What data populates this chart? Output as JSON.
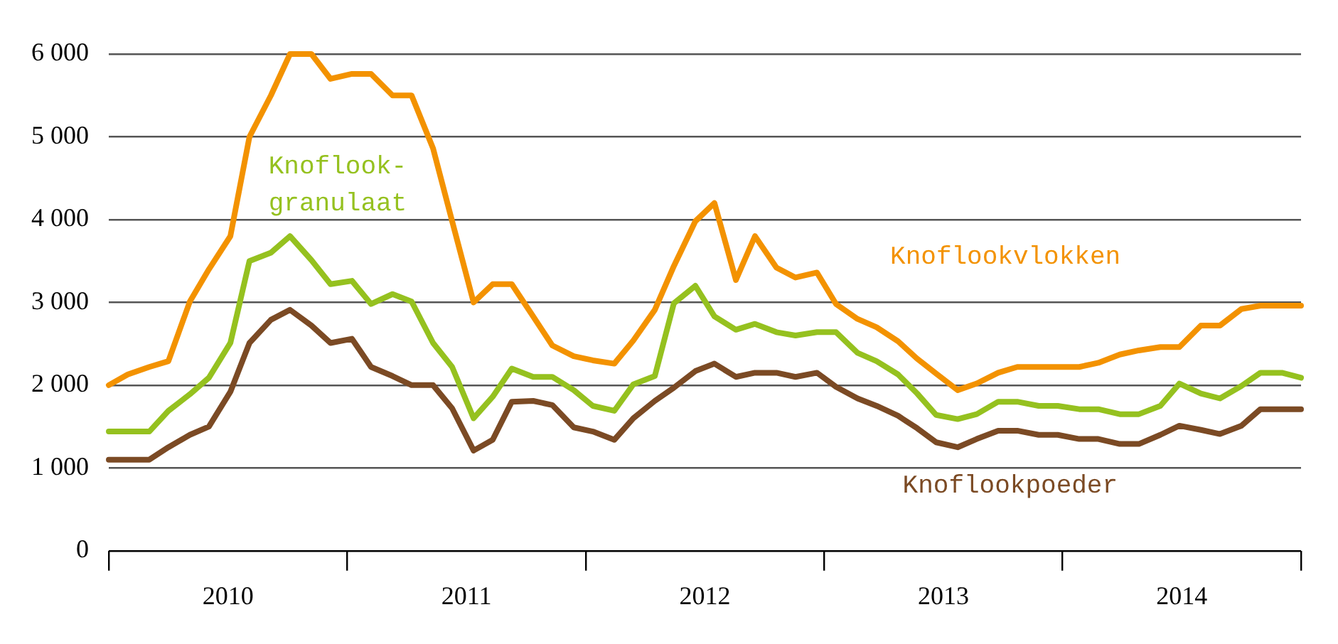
{
  "chart_data": {
    "type": "line",
    "x": [
      2010,
      2010.08,
      2010.17,
      2010.25,
      2010.34,
      2010.42,
      2010.51,
      2010.59,
      2010.68,
      2010.76,
      2010.85,
      2010.93,
      2011.02,
      2011.1,
      2011.19,
      2011.27,
      2011.36,
      2011.44,
      2011.53,
      2011.61,
      2011.69,
      2011.78,
      2011.86,
      2011.95,
      2012.03,
      2012.12,
      2012.2,
      2012.29,
      2012.37,
      2012.46,
      2012.54,
      2012.63,
      2012.71,
      2012.8,
      2012.88,
      2012.97,
      2013.05,
      2013.14,
      2013.22,
      2013.31,
      2013.39,
      2013.47,
      2013.56,
      2013.64,
      2013.73,
      2013.81,
      2013.9,
      2013.98,
      2014.07,
      2014.15,
      2014.24,
      2014.32,
      2014.41,
      2014.49,
      2014.58,
      2014.66,
      2014.75,
      2014.83,
      2014.92,
      2015
    ],
    "series": [
      {
        "name": "Knoflookvlokken",
        "color": "#f39200",
        "values": [
          2000,
          2130,
          2220,
          2290,
          3010,
          3400,
          3800,
          5000,
          5500,
          6000,
          6000,
          5700,
          5760,
          5760,
          5500,
          5500,
          4860,
          3980,
          3000,
          3220,
          3220,
          2830,
          2480,
          2350,
          2300,
          2260,
          2540,
          2910,
          3440,
          3980,
          4200,
          3270,
          3800,
          3420,
          3300,
          3360,
          2980,
          2800,
          2700,
          2530,
          2320,
          2140,
          1940,
          2020,
          2150,
          2220,
          2220,
          2220,
          2220,
          2270,
          2370,
          2420,
          2460,
          2460,
          2720,
          2720,
          2920,
          2960,
          2960,
          2960
        ]
      },
      {
        "name": "Knoflook-granulaat",
        "color": "#95c11f",
        "values": [
          1440,
          1440,
          1440,
          1690,
          1890,
          2090,
          2510,
          3500,
          3600,
          3800,
          3510,
          3220,
          3260,
          2980,
          3100,
          3010,
          2510,
          2220,
          1600,
          1860,
          2200,
          2100,
          2100,
          1940,
          1750,
          1690,
          2010,
          2110,
          2990,
          3200,
          2830,
          2670,
          2740,
          2640,
          2600,
          2640,
          2640,
          2390,
          2290,
          2130,
          1900,
          1640,
          1590,
          1650,
          1800,
          1800,
          1750,
          1750,
          1710,
          1710,
          1650,
          1650,
          1750,
          2020,
          1900,
          1840,
          1990,
          2150,
          2150,
          2090
        ]
      },
      {
        "name": "Knoflookpoeder",
        "color": "#7b4a24",
        "values": [
          1100,
          1100,
          1100,
          1250,
          1400,
          1500,
          1920,
          2510,
          2790,
          2910,
          2720,
          2510,
          2560,
          2220,
          2110,
          2000,
          2000,
          1720,
          1210,
          1340,
          1800,
          1810,
          1760,
          1490,
          1440,
          1340,
          1600,
          1810,
          1970,
          2170,
          2260,
          2100,
          2150,
          2150,
          2100,
          2150,
          1980,
          1840,
          1750,
          1630,
          1480,
          1310,
          1250,
          1350,
          1450,
          1450,
          1400,
          1400,
          1350,
          1350,
          1290,
          1290,
          1400,
          1510,
          1460,
          1410,
          1510,
          1710,
          1710,
          1710
        ]
      }
    ],
    "xlim": [
      2010,
      2015
    ],
    "xticks": [
      {
        "value": 2010,
        "label": null
      },
      {
        "value": 2010.5,
        "label": "2010"
      },
      {
        "value": 2011,
        "label": null
      },
      {
        "value": 2011.5,
        "label": "2011"
      },
      {
        "value": 2012,
        "label": null
      },
      {
        "value": 2012.5,
        "label": "2012"
      },
      {
        "value": 2013,
        "label": null
      },
      {
        "value": 2013.5,
        "label": "2013"
      },
      {
        "value": 2014,
        "label": null
      },
      {
        "value": 2014.5,
        "label": "2014"
      },
      {
        "value": 2015,
        "label": null
      }
    ],
    "ylim": [
      0,
      6000
    ],
    "yticks": [
      0,
      {
        "value": 1000,
        "label": "1 000"
      },
      {
        "value": 2000,
        "label": "2 000"
      },
      {
        "value": 3000,
        "label": "3 000"
      },
      {
        "value": 4000,
        "label": "4 000"
      },
      {
        "value": 5000,
        "label": "5 000"
      },
      {
        "value": 6000,
        "label": "6 000"
      }
    ],
    "grid": "y",
    "legend": false,
    "marker": "none",
    "line_style": "solid"
  }
}
